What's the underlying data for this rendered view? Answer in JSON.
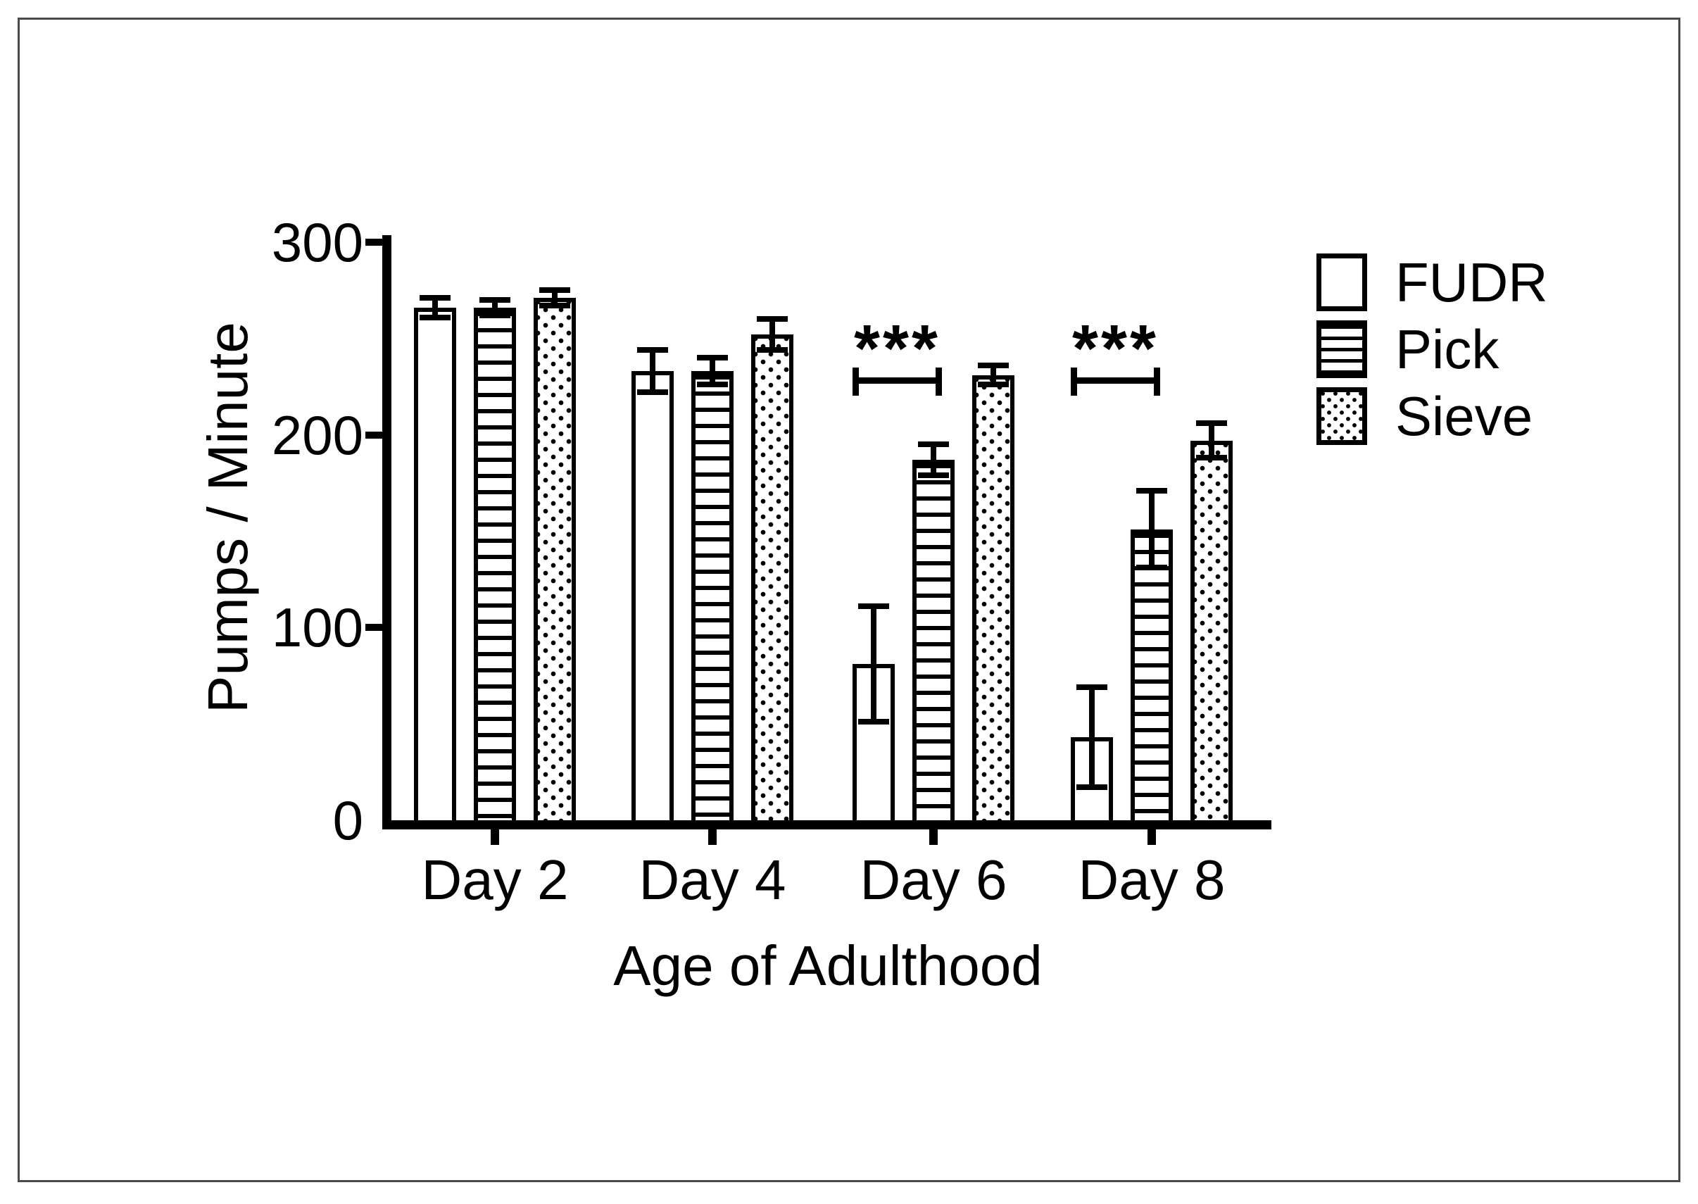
{
  "figure": {
    "frame_color": "#4a4a4a",
    "background_color": "#ffffff",
    "ink_color": "#000000"
  },
  "chart_data": {
    "type": "bar",
    "title": "",
    "categories": [
      "Day 2",
      "Day 4",
      "Day 6",
      "Day 8"
    ],
    "series": [
      {
        "name": "FUDR",
        "pattern": "white",
        "values": [
          266,
          233,
          81,
          43
        ],
        "errors": [
          5,
          11,
          30,
          26
        ]
      },
      {
        "name": "Pick",
        "pattern": "hlines",
        "values": [
          266,
          233,
          187,
          151
        ],
        "errors": [
          4,
          7,
          8,
          20
        ]
      },
      {
        "name": "Sieve",
        "pattern": "dots",
        "values": [
          271,
          252,
          231,
          197
        ],
        "errors": [
          4,
          8,
          5,
          9
        ]
      }
    ],
    "xlabel": "Age of Adulthood",
    "ylabel": "Pumps / Minute",
    "ylim": [
      0,
      300
    ],
    "yticks": [
      0,
      100,
      200,
      300
    ],
    "grid": false,
    "error_bars": "symmetric, capped, centered on bar top",
    "legend": {
      "position": "upper right",
      "entries": [
        {
          "label": "FUDR",
          "pattern": "white"
        },
        {
          "label": "Pick",
          "pattern": "hlines"
        },
        {
          "label": "Sieve",
          "pattern": "dots"
        }
      ]
    },
    "annotations": [
      {
        "text": "***",
        "category": "Day 6",
        "between": [
          "FUDR",
          "Pick"
        ]
      },
      {
        "text": "***",
        "category": "Day 8",
        "between": [
          "FUDR",
          "Pick"
        ]
      }
    ]
  }
}
